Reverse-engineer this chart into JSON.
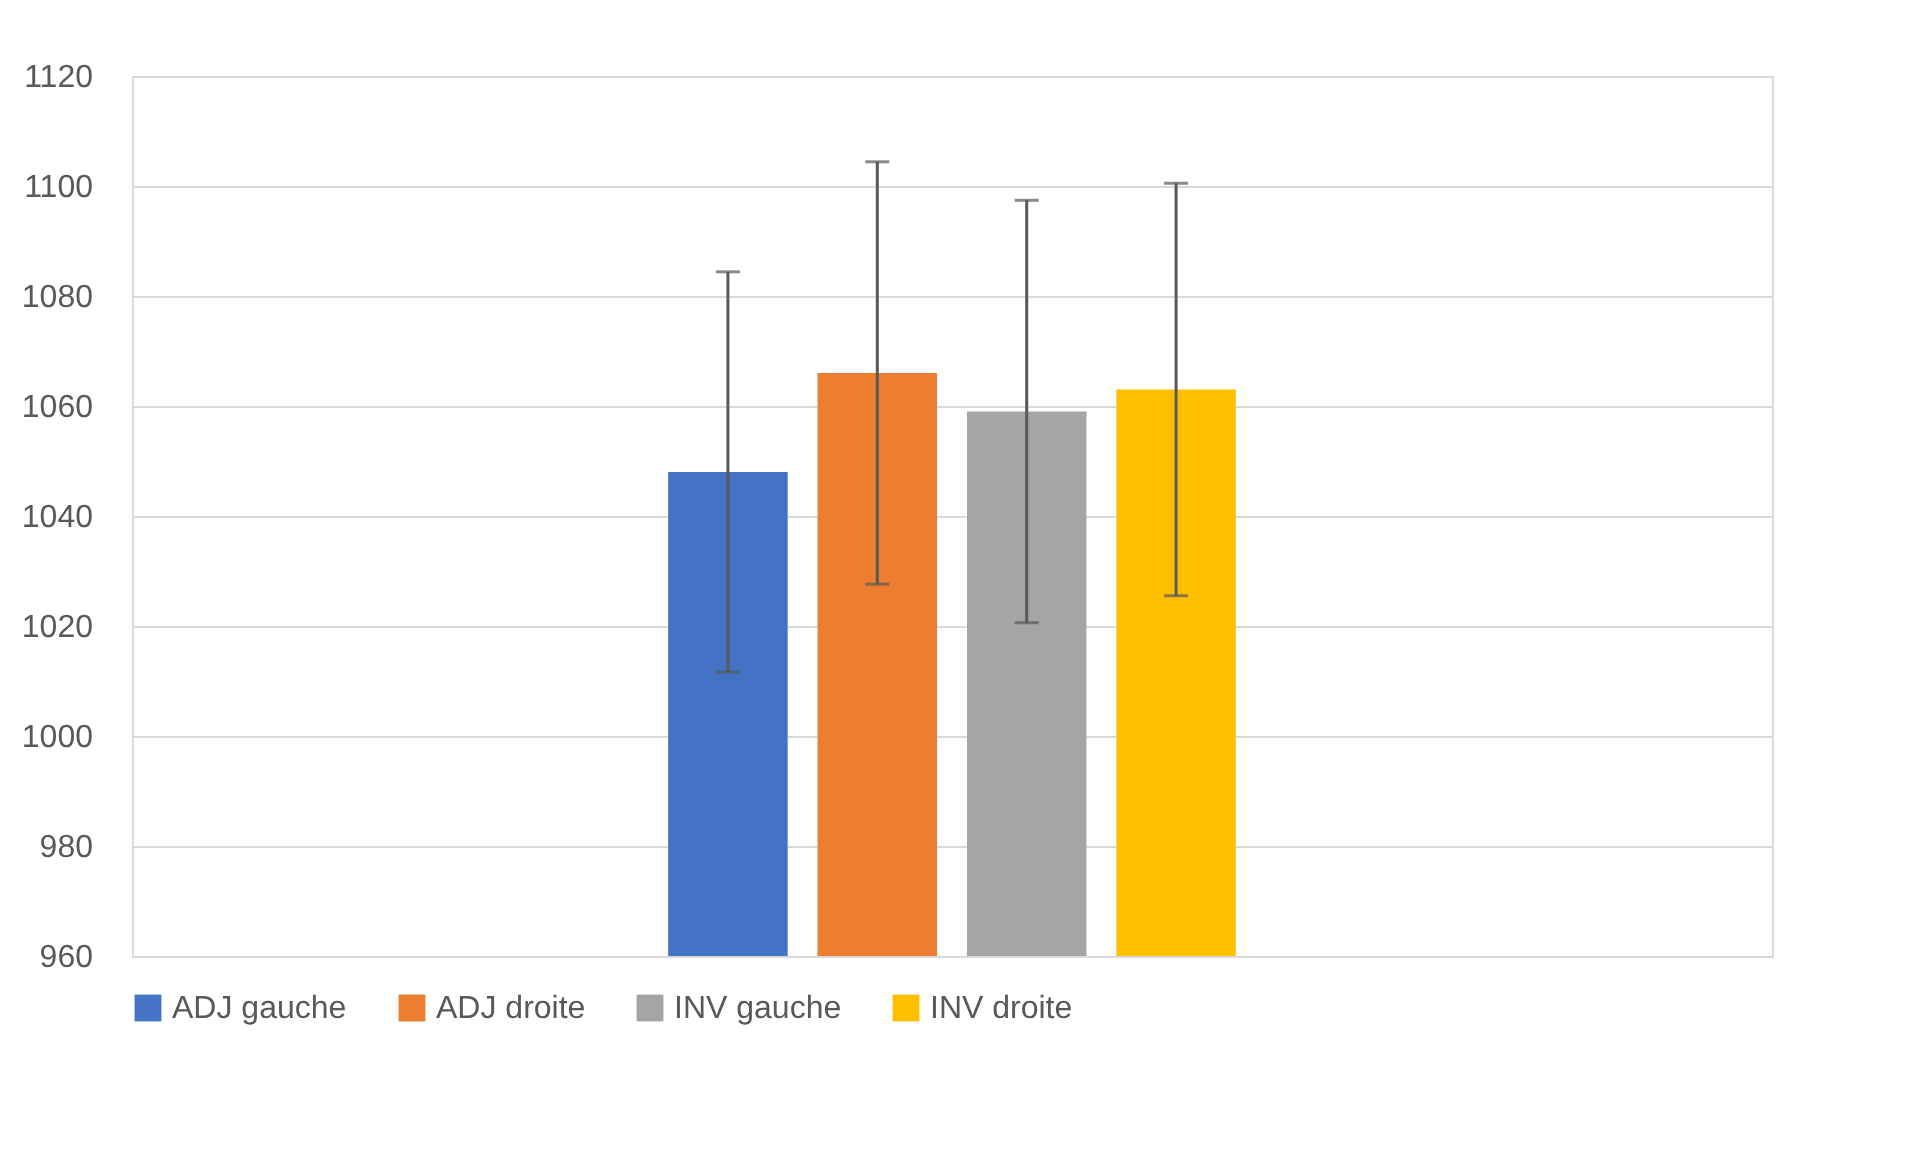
{
  "chart_data": {
    "type": "bar",
    "categories": [
      null
    ],
    "series": [
      {
        "name": "ADJ gauche",
        "color": "#4472c4",
        "values": [
          1048
        ],
        "errors": [
          36.4
        ]
      },
      {
        "name": "ADJ droite",
        "color": "#ed7d31",
        "values": [
          1066
        ],
        "errors": [
          38.4
        ]
      },
      {
        "name": "INV gauche",
        "color": "#a5a5a5",
        "values": [
          1059
        ],
        "errors": [
          38.4
        ]
      },
      {
        "name": "INV droite",
        "color": "#ffc000",
        "values": [
          1063
        ],
        "errors": [
          37.5
        ]
      }
    ],
    "ylim": [
      960,
      1120
    ],
    "yticks": [
      960,
      980,
      1000,
      1020,
      1040,
      1060,
      1080,
      1100,
      1120
    ],
    "grid": "y",
    "legend": "bottom"
  }
}
